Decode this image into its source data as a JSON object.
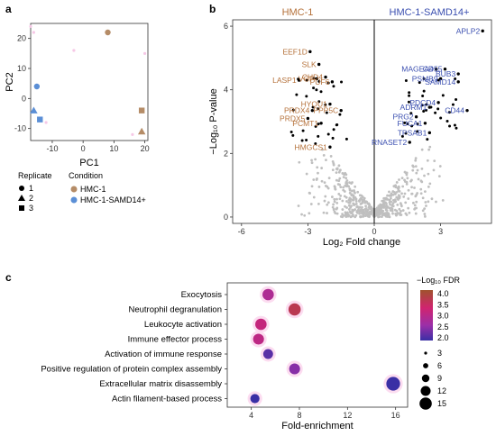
{
  "chart_data": [
    {
      "panel": "a",
      "type": "scatter",
      "xlabel": "PC1",
      "ylabel": "PC2",
      "xlim": [
        -17,
        21
      ],
      "ylim": [
        -14,
        25
      ],
      "xticks": [
        "-10",
        "0",
        "10",
        "20"
      ],
      "yticks": [
        "-10",
        "0",
        "10",
        "20"
      ],
      "points": [
        {
          "x": 8,
          "y": 22,
          "condition": "HMC-1",
          "replicate": "1"
        },
        {
          "x": 19,
          "y": -4,
          "condition": "HMC-1",
          "replicate": "3"
        },
        {
          "x": 19,
          "y": -11,
          "condition": "HMC-1",
          "replicate": "2"
        },
        {
          "x": -15,
          "y": 4,
          "condition": "HMC-1-SAMD14+",
          "replicate": "1"
        },
        {
          "x": -16,
          "y": -4,
          "condition": "HMC-1-SAMD14+",
          "replicate": "2"
        },
        {
          "x": -14,
          "y": -7,
          "condition": "HMC-1-SAMD14+",
          "replicate": "3"
        }
      ],
      "legend": {
        "replicate_title": "Replicate",
        "replicates": [
          "1",
          "2",
          "3"
        ],
        "condition_title": "Condition",
        "conditions": [
          {
            "name": "HMC-1",
            "color": "#b58c67"
          },
          {
            "name": "HMC-1-SAMD14+",
            "color": "#5b8fd6"
          }
        ]
      }
    },
    {
      "panel": "b",
      "type": "scatter",
      "title_left": "HMC-1",
      "title_right": "HMC-1-SAMD14+",
      "xlabel": "Log₂ Fold change",
      "ylabel": "−Log₁₀ P-value",
      "xlim": [
        -6.4,
        5.3
      ],
      "ylim": [
        -0.2,
        6.2
      ],
      "xticks": [
        "-6",
        "-3",
        "0",
        "3"
      ],
      "yticks": [
        "0",
        "2",
        "4",
        "6"
      ],
      "labeled_left": [
        {
          "name": "EEF1D",
          "x": -2.9,
          "y": 5.2
        },
        {
          "name": "SLK",
          "x": -2.5,
          "y": 4.8
        },
        {
          "name": "LASP1",
          "x": -3.4,
          "y": 4.3
        },
        {
          "name": "VGF",
          "x": -2.6,
          "y": 4.35
        },
        {
          "name": "CHD4",
          "x": -2.2,
          "y": 4.4
        },
        {
          "name": "PUF6",
          "x": -1.9,
          "y": 4.25
        },
        {
          "name": "HYOU1",
          "x": -2.0,
          "y": 3.55
        },
        {
          "name": "PRDX4",
          "x": -2.8,
          "y": 3.35
        },
        {
          "name": "PPP5C",
          "x": -1.5,
          "y": 3.35
        },
        {
          "name": "PRDX5",
          "x": -3.0,
          "y": 3.1
        },
        {
          "name": "PCMT1",
          "x": -2.4,
          "y": 2.95
        },
        {
          "name": "HMGCS1",
          "x": -2.0,
          "y": 2.2
        }
      ],
      "labeled_right": [
        {
          "name": "APLP2",
          "x": 4.9,
          "y": 5.85
        },
        {
          "name": "MAGEA4",
          "x": 2.8,
          "y": 4.65
        },
        {
          "name": "CD55",
          "x": 3.2,
          "y": 4.65
        },
        {
          "name": "BUB3",
          "x": 3.8,
          "y": 4.5
        },
        {
          "name": "PSMB9",
          "x": 3.0,
          "y": 4.35
        },
        {
          "name": "SAMD14",
          "x": 3.8,
          "y": 4.25
        },
        {
          "name": "PDCD4",
          "x": 2.9,
          "y": 3.6
        },
        {
          "name": "ADRM1",
          "x": 2.5,
          "y": 3.45
        },
        {
          "name": "CD44",
          "x": 4.2,
          "y": 3.35
        },
        {
          "name": "PRG2",
          "x": 1.9,
          "y": 3.15
        },
        {
          "name": "FUCA1",
          "x": 2.3,
          "y": 2.95
        },
        {
          "name": "TPSAB1",
          "x": 2.5,
          "y": 2.65
        },
        {
          "name": "RNASET2",
          "x": 1.6,
          "y": 2.35
        }
      ],
      "colors": {
        "left": "#b5713a",
        "right": "#3b4fb0",
        "sig": "#000000",
        "ns": "#bfbfbf",
        "zero_line": "#000000"
      }
    },
    {
      "panel": "c",
      "type": "scatter",
      "xlabel": "Fold-enrichment",
      "xlim": [
        2,
        17
      ],
      "xticks": [
        "4",
        "8",
        "12",
        "16"
      ],
      "terms": [
        {
          "name": "Exocytosis",
          "fold": 5.4,
          "neglog10fdr": 2.8,
          "size": 8
        },
        {
          "name": "Neutrophil degranulation",
          "fold": 7.6,
          "neglog10fdr": 3.6,
          "size": 10
        },
        {
          "name": "Leukocyte activation",
          "fold": 4.8,
          "neglog10fdr": 3.1,
          "size": 8
        },
        {
          "name": "Immune effector process",
          "fold": 4.6,
          "neglog10fdr": 3.0,
          "size": 7
        },
        {
          "name": "Activation of immune response",
          "fold": 5.4,
          "neglog10fdr": 2.1,
          "size": 5
        },
        {
          "name": "Positive regulation of protein complex assembly",
          "fold": 7.6,
          "neglog10fdr": 2.4,
          "size": 7
        },
        {
          "name": "Extracellular matrix disassembly",
          "fold": 15.8,
          "neglog10fdr": 1.9,
          "size": 14
        },
        {
          "name": "Actin filament-based process",
          "fold": 4.3,
          "neglog10fdr": 1.9,
          "size": 4
        }
      ],
      "color_legend": {
        "title": "−Log₁₀ FDR",
        "ticks": [
          "4.0",
          "3.5",
          "3.0",
          "2.5",
          "2.0"
        ],
        "low_color": "#3b2fa0",
        "mid_color": "#c0267a",
        "high_color": "#a05a2c"
      },
      "size_legend": {
        "values": [
          "3",
          "6",
          "9",
          "12",
          "15"
        ]
      }
    }
  ]
}
